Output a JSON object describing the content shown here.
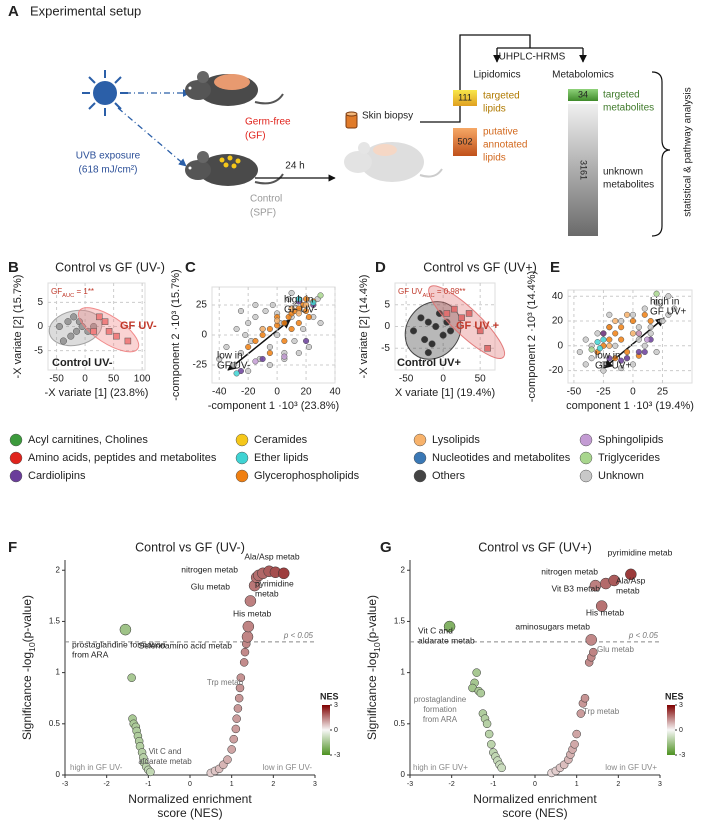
{
  "setup": {
    "letter": "A",
    "title": "Experimental setup",
    "exposure": [
      "UVB exposure",
      "(618 mJ/cm²)"
    ],
    "germ_free": [
      "Germ-free",
      "(GF)"
    ],
    "control": [
      "Control",
      "(SPF)"
    ],
    "time": "24 h",
    "biopsy": "Skin biopsy",
    "platform": "UHPLC-HRMS",
    "lipidomics": "Lipidomics",
    "metabolomics": "Metabolomics",
    "targeted_lipids": {
      "count": 111,
      "label": [
        "targeted",
        "lipids"
      ]
    },
    "annotated_lipids": {
      "count": 502,
      "label": [
        "putative",
        "annotated",
        "lipids"
      ]
    },
    "targeted_metabolites": {
      "count": 34,
      "label": [
        "targeted",
        "metabolites"
      ]
    },
    "unknown_metabolites": {
      "count": 3161,
      "label": [
        "unknown",
        "metabolites"
      ]
    },
    "analysis": "statistical & pathway analysis"
  },
  "legend": [
    {
      "name": "Acyl carnitines, Cholines",
      "color": "#3c9a3c"
    },
    {
      "name": "Amino acids, peptides and metabolites",
      "color": "#e0231c"
    },
    {
      "name": "Cardiolipins",
      "color": "#6a3d9a"
    },
    {
      "name": "Ceramides",
      "color": "#f5c71a"
    },
    {
      "name": "Ether lipids",
      "color": "#3fd3d3"
    },
    {
      "name": "Glycerophospholipids",
      "color": "#f07f10"
    },
    {
      "name": "Lysolipids",
      "color": "#f7b26b"
    },
    {
      "name": "Nucleotides and metabolites",
      "color": "#3a78b5"
    },
    {
      "name": "Others",
      "color": "#444444"
    },
    {
      "name": "Sphingolipids",
      "color": "#c39bd3"
    },
    {
      "name": "Triglycerides",
      "color": "#a8d68d"
    },
    {
      "name": "Unknown",
      "color": "#c8c8c8"
    }
  ],
  "chart_data": [
    {
      "type": "scatter",
      "letter": "B",
      "title": "Control vs GF (UV-)",
      "xlabel": "-X variate [1] (23.8%)",
      "ylabel": "-X variate [2] (15.7%)",
      "xlim": [
        -65,
        105
      ],
      "xticks": [
        -50,
        0,
        50,
        100
      ],
      "ylim": [
        -9,
        9
      ],
      "yticks": [
        -5,
        0,
        5
      ],
      "grid": true,
      "series": [
        {
          "color": "#9a9a9a",
          "marker": "circle",
          "ellipse": true,
          "x": [
            -45,
            -38,
            -30,
            -25,
            -20,
            -15,
            -10,
            -5,
            5,
            15
          ],
          "values": [
            0,
            -3,
            1,
            -2,
            2,
            -1,
            1,
            0,
            -1,
            0
          ]
        },
        {
          "color": "#f08080",
          "marker": "square",
          "ellipse": true,
          "x": [
            15,
            25,
            35,
            42,
            55,
            75
          ],
          "values": [
            -1,
            2,
            1,
            -1,
            -2,
            -3
          ]
        }
      ],
      "annotations": [
        {
          "text": "GF",
          "sub": "AUC",
          "after": " = 1**"
        },
        [
          "GF UV-"
        ],
        [
          "Control UV-"
        ]
      ]
    },
    {
      "type": "scatter",
      "letter": "C",
      "xlabel": "-component 1 ·10³ (23.8%)",
      "ylabel": "-component 2 ·10³ (15.7%)",
      "xlim": [
        -45,
        40
      ],
      "xticks": [
        -40,
        -20,
        0,
        20,
        40
      ],
      "ylim": [
        -40,
        40
      ],
      "yticks": [
        -25,
        0,
        25
      ],
      "grid": true,
      "series": [
        {
          "color": "#c8c8c8",
          "marker": "circle",
          "x": [
            -40,
            -35,
            -30,
            -28,
            -25,
            -22,
            -20,
            -18,
            -15,
            -12,
            -10,
            -8,
            -5,
            -3,
            0,
            2,
            5,
            8,
            10,
            12,
            15,
            18,
            20,
            22,
            25,
            28,
            30,
            -15,
            -5,
            5,
            10,
            0,
            -20,
            -25,
            15
          ],
          "values": [
            -20,
            -10,
            -25,
            5,
            -15,
            0,
            10,
            -5,
            15,
            -20,
            5,
            20,
            -10,
            25,
            0,
            10,
            -15,
            30,
            15,
            -5,
            20,
            5,
            25,
            -10,
            15,
            30,
            10,
            25,
            -25,
            -20,
            35,
            18,
            -30,
            20,
            -15
          ]
        },
        {
          "color": "#f07f10",
          "marker": "circle",
          "x": [
            -20,
            -15,
            -10,
            -5,
            0,
            5,
            8,
            10,
            12,
            15,
            18,
            20,
            22,
            25,
            5,
            10,
            15,
            0,
            -5,
            20
          ],
          "values": [
            -10,
            -5,
            0,
            5,
            8,
            10,
            15,
            18,
            20,
            22,
            25,
            20,
            15,
            28,
            -5,
            5,
            10,
            15,
            -15,
            30
          ]
        },
        {
          "color": "#f7b26b",
          "marker": "circle",
          "x": [
            -10,
            0,
            10,
            15,
            20
          ],
          "values": [
            5,
            12,
            22,
            18,
            25
          ]
        },
        {
          "color": "#6a3d9a",
          "marker": "circle",
          "x": [
            -25,
            -10,
            15,
            25,
            20
          ],
          "values": [
            -30,
            -20,
            28,
            25,
            -5
          ]
        },
        {
          "color": "#3fd3d3",
          "marker": "circle",
          "x": [
            15,
            -28,
            25
          ],
          "values": [
            30,
            -32,
            27
          ]
        },
        {
          "color": "#c39bd3",
          "marker": "circle",
          "x": [
            5,
            -15
          ],
          "values": [
            -18,
            -22
          ]
        },
        {
          "color": "#a8d68d",
          "marker": "circle",
          "x": [
            30
          ],
          "values": [
            33
          ]
        }
      ],
      "annotations": [
        [
          "high in",
          "GF UV-"
        ],
        [
          "low in",
          "GF UV-"
        ]
      ]
    },
    {
      "type": "scatter",
      "letter": "D",
      "title": "Control vs GF (UV+)",
      "xlabel": "X variate [1] (19.4%)",
      "ylabel": "-X variate [2] (14.4%)",
      "xlim": [
        -65,
        70
      ],
      "xticks": [
        -50,
        0,
        50
      ],
      "ylim": [
        -10,
        10
      ],
      "yticks": [
        -5,
        0,
        5
      ],
      "grid": true,
      "series": [
        {
          "color": "#333333",
          "marker": "circle",
          "ellipse": true,
          "x": [
            -40,
            -30,
            -25,
            -20,
            -15,
            -10,
            -5,
            0,
            5,
            10,
            -20
          ],
          "values": [
            -1,
            2,
            -3,
            1,
            -4,
            0,
            3,
            -2,
            1,
            -1,
            -6
          ]
        },
        {
          "color": "#e07070",
          "marker": "square",
          "ellipse": true,
          "x": [
            5,
            15,
            25,
            35,
            50,
            60
          ],
          "values": [
            3,
            4,
            2,
            3,
            -1,
            -5
          ]
        }
      ],
      "annotations": [
        {
          "text": "GF UV",
          "sub": "AUC",
          "after": " = 0.98**"
        },
        [
          "GF UV +"
        ],
        [
          "Control UV+"
        ]
      ]
    },
    {
      "type": "scatter",
      "letter": "E",
      "xlabel": "component 1 ·10³ (19.4%)",
      "ylabel": "-component 2 ·10³ (14.4%)",
      "xlim": [
        -55,
        50
      ],
      "xticks": [
        -50,
        -25,
        0,
        25
      ],
      "ylim": [
        -30,
        45
      ],
      "yticks": [
        -20,
        0,
        20,
        40
      ],
      "grid": true,
      "series": [
        {
          "color": "#c8c8c8",
          "marker": "circle",
          "x": [
            -45,
            -40,
            -35,
            -30,
            -25,
            -20,
            -15,
            -10,
            -5,
            0,
            5,
            10,
            15,
            20,
            25,
            30,
            35,
            -25,
            -10,
            0,
            15,
            -35,
            -20,
            5,
            20,
            30,
            -40,
            10
          ],
          "values": [
            -5,
            5,
            -10,
            10,
            -15,
            15,
            0,
            20,
            -10,
            25,
            5,
            30,
            15,
            35,
            20,
            25,
            30,
            -20,
            -18,
            -15,
            10,
            0,
            25,
            15,
            -5,
            40,
            -15,
            0
          ]
        },
        {
          "color": "#f07f10",
          "marker": "circle",
          "x": [
            -30,
            -25,
            -20,
            -15,
            -10,
            -5,
            0,
            5,
            10,
            -20,
            -15,
            -10,
            5,
            15,
            -25
          ],
          "values": [
            -5,
            0,
            5,
            10,
            15,
            -5,
            20,
            10,
            25,
            15,
            -10,
            5,
            -8,
            20,
            10
          ]
        },
        {
          "color": "#f7b26b",
          "marker": "circle",
          "x": [
            -15,
            -5,
            0,
            -20
          ],
          "values": [
            20,
            25,
            10,
            0
          ]
        },
        {
          "color": "#6a3d9a",
          "marker": "circle",
          "x": [
            -20,
            -10,
            10,
            15,
            -25,
            5,
            -5
          ],
          "values": [
            -10,
            -12,
            -5,
            5,
            10,
            -5,
            -10
          ]
        },
        {
          "color": "#3fd3d3",
          "marker": "circle",
          "x": [
            -28,
            -25,
            -30
          ],
          "values": [
            -2,
            5,
            3
          ]
        },
        {
          "color": "#c39bd3",
          "marker": "circle",
          "x": [
            5,
            12
          ],
          "values": [
            10,
            5
          ]
        },
        {
          "color": "#a8d68d",
          "marker": "circle",
          "x": [
            20,
            -35
          ],
          "values": [
            42,
            -3
          ]
        }
      ],
      "annotations": [
        [
          "high in",
          "GF UV+"
        ],
        [
          "low in",
          "GF UV+"
        ]
      ]
    },
    {
      "type": "scatter",
      "letter": "F",
      "title": "Control vs GF (UV-)",
      "xlabel": [
        "Normalized enrichment",
        "score (NES)"
      ],
      "ylabel": {
        "text": "Significance -log",
        "sub": "10",
        "after": "(p-value)"
      },
      "xlim": [
        -3,
        3
      ],
      "xticks": [
        -3,
        -2,
        -1,
        0,
        1,
        2,
        3
      ],
      "ylim": [
        0,
        2.1
      ],
      "yticks": [
        0,
        0.5,
        1,
        1.5,
        2
      ],
      "grid": false,
      "threshold": 1.3,
      "threshold_label": "p < 0.05",
      "colorscale": {
        "low": "#4d9221",
        "mid": "#f7f7f7",
        "high": "#7f0000"
      },
      "colorbar_title": "NES",
      "colorbar_ticks": [
        3,
        0,
        -3
      ],
      "series": [
        {
          "marker": "circle",
          "x": [
            -1.55,
            -1.4,
            -1.38,
            -1.35,
            -1.3,
            -1.28,
            -1.25,
            -1.22,
            -1.2,
            -1.15,
            -1.12,
            -1.1,
            -1.05,
            -1.0,
            -0.95,
            0.5,
            0.6,
            0.7,
            0.8,
            0.9,
            1.0,
            1.05,
            1.1,
            1.12,
            1.15,
            1.18,
            1.2,
            1.22,
            1.3,
            1.32,
            1.35,
            1.38,
            1.4,
            1.45,
            1.55,
            1.6,
            1.65,
            1.75,
            1.9,
            2.05,
            2.25
          ],
          "values": [
            1.42,
            0.95,
            0.55,
            0.5,
            0.47,
            0.43,
            0.38,
            0.33,
            0.28,
            0.22,
            0.17,
            0.12,
            0.08,
            0.05,
            0.03,
            0.02,
            0.04,
            0.06,
            0.1,
            0.15,
            0.25,
            0.35,
            0.45,
            0.55,
            0.65,
            0.75,
            0.85,
            0.95,
            1.1,
            1.2,
            1.28,
            1.35,
            1.45,
            1.7,
            1.85,
            1.93,
            1.95,
            1.97,
            1.99,
            1.98,
            1.97
          ]
        }
      ],
      "annotations": [
        [
          "Ala/Asp metab"
        ],
        [
          "nitrogen metab"
        ],
        [
          "pyrimidine",
          "metab"
        ],
        [
          "Glu metab"
        ],
        [
          "His metab"
        ],
        [
          "Selenoamino acid metab"
        ],
        [
          "Trp metab"
        ],
        [
          "prostaglandine formation",
          "from ARA"
        ],
        [
          "Vit C and",
          "aldarate metab"
        ],
        [
          "high in GF UV-"
        ],
        [
          "low in GF UV-"
        ]
      ]
    },
    {
      "type": "scatter",
      "letter": "G",
      "title": "Control vs GF (UV+)",
      "xlabel": [
        "Normalized enrichment",
        "score (NES)"
      ],
      "ylabel": {
        "text": "Significance -log",
        "sub": "10",
        "after": "(p-value)"
      },
      "xlim": [
        -3,
        3
      ],
      "xticks": [
        -3,
        -2,
        -1,
        0,
        1,
        2,
        3
      ],
      "ylim": [
        0,
        2.1
      ],
      "yticks": [
        0,
        0.5,
        1,
        1.5,
        2
      ],
      "grid": false,
      "threshold": 1.3,
      "threshold_label": "p < 0.05",
      "colorscale": {
        "low": "#4d9221",
        "mid": "#f7f7f7",
        "high": "#7f0000"
      },
      "colorbar_title": "NES",
      "colorbar_ticks": [
        3,
        0,
        -3
      ],
      "series": [
        {
          "marker": "circle",
          "x": [
            -2.05,
            -1.4,
            -1.45,
            -1.5,
            -1.35,
            -1.3,
            -1.25,
            -1.2,
            -1.15,
            -1.1,
            -1.05,
            -1.0,
            -0.95,
            -0.9,
            -0.85,
            -0.8,
            0.4,
            0.5,
            0.6,
            0.7,
            0.8,
            0.85,
            0.9,
            0.95,
            1.0,
            1.1,
            1.15,
            1.2,
            1.3,
            1.35,
            1.4,
            1.35,
            1.6,
            1.45,
            1.7,
            1.9,
            2.3
          ],
          "values": [
            1.45,
            1.0,
            0.9,
            0.85,
            0.82,
            0.8,
            0.6,
            0.55,
            0.5,
            0.4,
            0.3,
            0.22,
            0.18,
            0.14,
            0.1,
            0.07,
            0.02,
            0.04,
            0.07,
            0.1,
            0.15,
            0.2,
            0.25,
            0.3,
            0.4,
            0.6,
            0.7,
            0.75,
            1.1,
            1.15,
            1.2,
            1.32,
            1.65,
            1.85,
            1.87,
            1.9,
            1.96
          ]
        }
      ],
      "annotations": [
        [
          "pyrimidine metab"
        ],
        [
          "nitrogen metab"
        ],
        [
          "Ala/Asp",
          "metab"
        ],
        [
          "Vit B3 metab"
        ],
        [
          "His metab"
        ],
        [
          "aminosugars metab"
        ],
        [
          "Glu metab"
        ],
        [
          "Trp metab"
        ],
        [
          "Vit C and",
          "aldarate metab"
        ],
        [
          "prostaglandine",
          "formation",
          "from ARA"
        ],
        [
          "high in GF UV+"
        ],
        [
          "low in GF UV+"
        ]
      ]
    }
  ]
}
